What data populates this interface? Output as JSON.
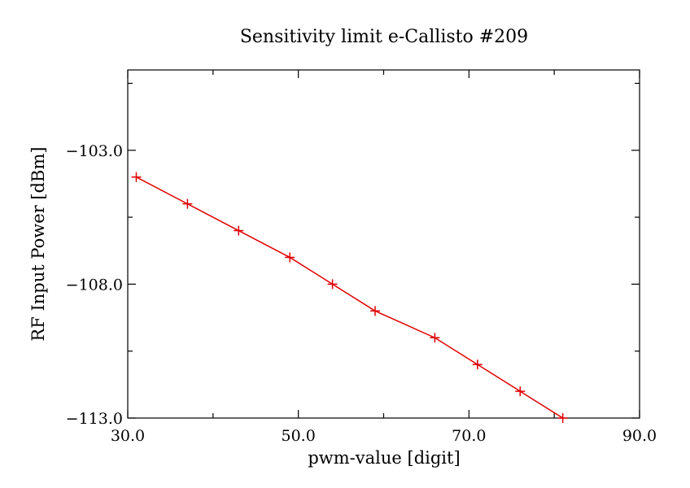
{
  "chart_data": {
    "type": "line",
    "title": "Sensitivity limit e-Callisto #209",
    "xlabel": "pwm-value [digit]",
    "ylabel": "RF Input Power [dBm]",
    "xlim": [
      30.0,
      90.0
    ],
    "ylim": [
      -113.0,
      -100.0
    ],
    "x_major_ticks": [
      30.0,
      50.0,
      70.0,
      90.0
    ],
    "x_tick_labels": [
      "30.0",
      "50.0",
      "70.0",
      "90.0"
    ],
    "x_minor_ticks": [
      40.0,
      60.0,
      80.0
    ],
    "y_major_ticks": [
      -113.0,
      -108.0,
      -103.0
    ],
    "y_tick_labels": [
      "−113.0",
      "−108.0",
      "−103.0"
    ],
    "y_minor_ticks": [
      -110.5,
      -105.5,
      -100.5
    ],
    "grid": false,
    "series": [
      {
        "color": "#e00000",
        "marker": "plus",
        "x": [
          31.0,
          37.0,
          43.0,
          49.0,
          54.0,
          59.0,
          66.0,
          71.0,
          76.0,
          81.0
        ],
        "y": [
          -104.0,
          -105.0,
          -106.0,
          -107.0,
          -108.0,
          -109.0,
          -110.0,
          -111.0,
          -112.0,
          -113.0
        ]
      }
    ]
  }
}
